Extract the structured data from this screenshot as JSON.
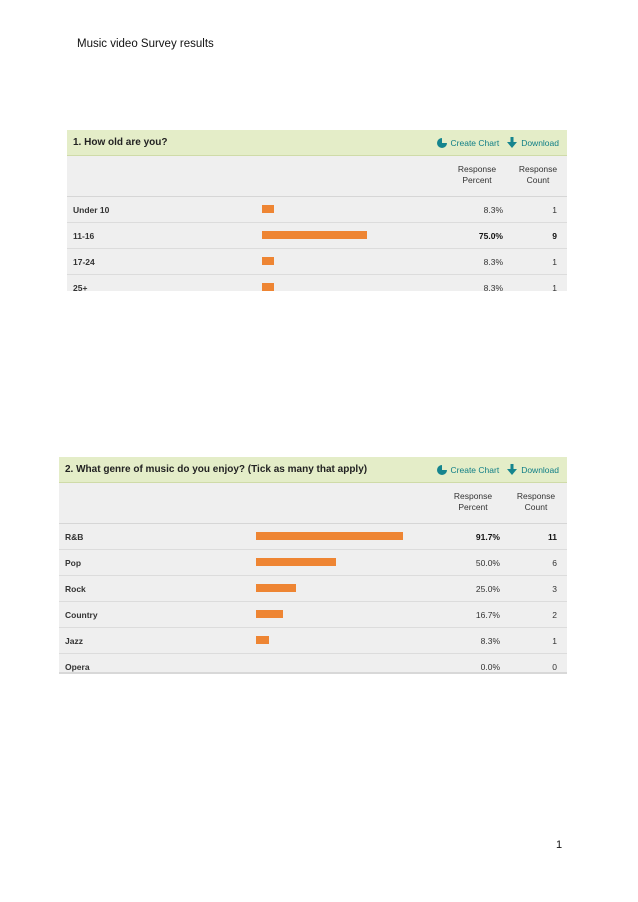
{
  "document": {
    "title": "Music video Survey results",
    "page_number": "1"
  },
  "actions": {
    "create_chart": "Create Chart",
    "download": "Download"
  },
  "columns": {
    "percent_line1": "Response",
    "percent_line2": "Percent",
    "count_line1": "Response",
    "count_line2": "Count"
  },
  "colors": {
    "bar": "#ee8533",
    "header_bg": "#e4edc8",
    "action_text": "#0f7e86",
    "table_bg": "#efefef"
  },
  "questions": [
    {
      "title": "1. How old are you?",
      "rows": [
        {
          "label": "Under 10",
          "percent": "8.3%",
          "count": "1",
          "fraction": 0.083,
          "top": false
        },
        {
          "label": "11-16",
          "percent": "75.0%",
          "count": "9",
          "fraction": 0.75,
          "top": true
        },
        {
          "label": "17-24",
          "percent": "8.3%",
          "count": "1",
          "fraction": 0.083,
          "top": false
        },
        {
          "label": "25+",
          "percent": "8.3%",
          "count": "1",
          "fraction": 0.083,
          "top": false
        }
      ]
    },
    {
      "title": "2. What genre of music do you enjoy? (Tick as many that apply)",
      "rows": [
        {
          "label": "R&B",
          "percent": "91.7%",
          "count": "11",
          "fraction": 0.917,
          "top": true
        },
        {
          "label": "Pop",
          "percent": "50.0%",
          "count": "6",
          "fraction": 0.5,
          "top": false
        },
        {
          "label": "Rock",
          "percent": "25.0%",
          "count": "3",
          "fraction": 0.25,
          "top": false
        },
        {
          "label": "Country",
          "percent": "16.7%",
          "count": "2",
          "fraction": 0.167,
          "top": false
        },
        {
          "label": "Jazz",
          "percent": "8.3%",
          "count": "1",
          "fraction": 0.083,
          "top": false
        },
        {
          "label": "Opera",
          "percent": "0.0%",
          "count": "0",
          "fraction": 0.0,
          "top": false
        }
      ]
    }
  ]
}
